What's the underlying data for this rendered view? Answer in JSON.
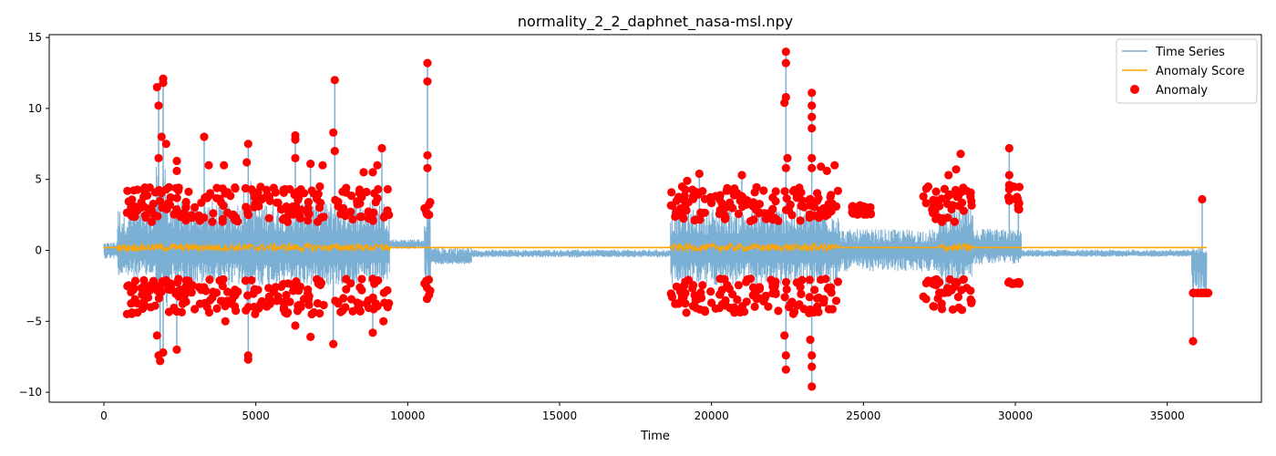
{
  "chart_data": {
    "type": "line",
    "title": "normality_2_2_daphnet_nasa-msl.npy",
    "xlabel": "Time",
    "ylabel": "",
    "xlim": [
      -1800,
      38100
    ],
    "ylim": [
      -10.7,
      15.2
    ],
    "xticks": [
      0,
      5000,
      10000,
      15000,
      20000,
      25000,
      30000,
      35000
    ],
    "yticks": [
      -10,
      -5,
      0,
      5,
      10,
      15
    ],
    "grid": false,
    "legend_position": "top-right",
    "colors": {
      "time_series": "#7bafd4",
      "anomaly_score": "#ffa500",
      "anomaly": "#ff0000"
    },
    "series": [
      {
        "name": "Time Series",
        "segments": [
          {
            "x_start": 0,
            "x_end": 450,
            "center": 0.0,
            "hi": 0.6,
            "lo": -0.6
          },
          {
            "x_start": 450,
            "x_end": 1700,
            "center": 0.1,
            "hi": 3.0,
            "lo": -2.0
          },
          {
            "x_start": 1700,
            "x_end": 2100,
            "center": 0.2,
            "hi": 6.0,
            "lo": -4.0
          },
          {
            "x_start": 2100,
            "x_end": 4600,
            "center": 0.1,
            "hi": 3.5,
            "lo": -2.5
          },
          {
            "x_start": 4600,
            "x_end": 4900,
            "center": 0.1,
            "hi": 5.0,
            "lo": -4.0
          },
          {
            "x_start": 4900,
            "x_end": 9400,
            "center": 0.1,
            "hi": 3.5,
            "lo": -2.5
          },
          {
            "x_start": 9400,
            "x_end": 10550,
            "center": 0.4,
            "hi": 0.8,
            "lo": 0.1
          },
          {
            "x_start": 10550,
            "x_end": 10750,
            "center": 0.3,
            "hi": 3.0,
            "lo": -2.5
          },
          {
            "x_start": 10750,
            "x_end": 12100,
            "center": -0.6,
            "hi": 0.3,
            "lo": -1.0
          },
          {
            "x_start": 12100,
            "x_end": 18650,
            "center": -0.25,
            "hi": 0.05,
            "lo": -0.5
          },
          {
            "x_start": 18650,
            "x_end": 24200,
            "center": 0.1,
            "hi": 3.0,
            "lo": -2.5
          },
          {
            "x_start": 24200,
            "x_end": 27500,
            "center": 0.0,
            "hi": 1.5,
            "lo": -1.5
          },
          {
            "x_start": 27500,
            "x_end": 28600,
            "center": 0.2,
            "hi": 3.0,
            "lo": -2.5
          },
          {
            "x_start": 28600,
            "x_end": 30200,
            "center": 0.1,
            "hi": 1.5,
            "lo": -1.0
          },
          {
            "x_start": 30200,
            "x_end": 35800,
            "center": -0.25,
            "hi": 0.05,
            "lo": -0.45
          },
          {
            "x_start": 35800,
            "x_end": 36300,
            "center": -0.4,
            "hi": 0.2,
            "lo": -3.0
          }
        ],
        "spikes": [
          {
            "x": 1800,
            "y": 11.5
          },
          {
            "x": 1950,
            "y": 12.1
          },
          {
            "x": 1850,
            "y": -7.8
          },
          {
            "x": 1950,
            "y": -7.2
          },
          {
            "x": 2400,
            "y": -7.0
          },
          {
            "x": 3300,
            "y": 8.0
          },
          {
            "x": 4750,
            "y": 7.5
          },
          {
            "x": 4750,
            "y": -7.7
          },
          {
            "x": 6300,
            "y": 8.1
          },
          {
            "x": 6800,
            "y": 6.1
          },
          {
            "x": 7600,
            "y": 12.0
          },
          {
            "x": 7550,
            "y": -6.6
          },
          {
            "x": 8850,
            "y": -5.8
          },
          {
            "x": 9150,
            "y": 7.2
          },
          {
            "x": 10650,
            "y": 13.2
          },
          {
            "x": 10700,
            "y": -3.7
          },
          {
            "x": 19600,
            "y": 5.4
          },
          {
            "x": 21000,
            "y": 5.3
          },
          {
            "x": 22450,
            "y": 14.0
          },
          {
            "x": 22450,
            "y": -8.4
          },
          {
            "x": 23300,
            "y": 11.1
          },
          {
            "x": 23300,
            "y": -9.6
          },
          {
            "x": 29800,
            "y": 7.2
          },
          {
            "x": 30100,
            "y": 3.4
          },
          {
            "x": 35850,
            "y": -6.4
          },
          {
            "x": 36150,
            "y": 3.6
          }
        ]
      },
      {
        "name": "Anomaly Score",
        "baseline": 0.2,
        "noise_regions": [
          [
            450,
            9400
          ],
          [
            18650,
            24200
          ],
          [
            27500,
            28600
          ]
        ]
      },
      {
        "name": "Anomaly",
        "clusters": [
          {
            "x_start": 700,
            "x_end": 9450,
            "upper": [
              2.0,
              4.5
            ],
            "lower": [
              -2.0,
              -4.5
            ]
          },
          {
            "x_start": 10550,
            "x_end": 10780,
            "upper": [
              2.5,
              3.4
            ],
            "lower": [
              -2.0,
              -3.6
            ]
          },
          {
            "x_start": 18650,
            "x_end": 24250,
            "upper": [
              2.0,
              4.5
            ],
            "lower": [
              -2.0,
              -4.5
            ]
          },
          {
            "x_start": 24600,
            "x_end": 25300,
            "upper": [
              2.5,
              3.2
            ],
            "lower": [
              2.5,
              3.0
            ]
          },
          {
            "x_start": 26900,
            "x_end": 28600,
            "upper": [
              2.0,
              4.5
            ],
            "lower": [
              -2.0,
              -4.2
            ]
          },
          {
            "x_start": 29750,
            "x_end": 30150,
            "upper": [
              2.8,
              4.6
            ],
            "lower": [
              -2.2,
              -2.4
            ]
          },
          {
            "x_start": 35850,
            "x_end": 36350,
            "upper": [
              -3.0,
              -3.0
            ],
            "lower": [
              -3.0,
              -3.0
            ]
          }
        ],
        "points": [
          {
            "x": 1750,
            "y": 11.5
          },
          {
            "x": 1800,
            "y": 10.2
          },
          {
            "x": 1950,
            "y": 12.1
          },
          {
            "x": 1950,
            "y": 11.8
          },
          {
            "x": 1900,
            "y": 8.0
          },
          {
            "x": 1800,
            "y": 6.5
          },
          {
            "x": 2050,
            "y": 7.5
          },
          {
            "x": 2400,
            "y": 6.3
          },
          {
            "x": 2400,
            "y": 5.6
          },
          {
            "x": 1850,
            "y": -7.8
          },
          {
            "x": 1800,
            "y": -7.4
          },
          {
            "x": 1950,
            "y": -7.2
          },
          {
            "x": 2400,
            "y": -7.0
          },
          {
            "x": 1750,
            "y": -6.0
          },
          {
            "x": 3300,
            "y": 8.0
          },
          {
            "x": 3450,
            "y": 6.0
          },
          {
            "x": 3950,
            "y": 6.0
          },
          {
            "x": 4000,
            "y": -5.0
          },
          {
            "x": 4750,
            "y": 7.5
          },
          {
            "x": 4700,
            "y": 6.2
          },
          {
            "x": 4750,
            "y": -7.7
          },
          {
            "x": 4750,
            "y": -7.4
          },
          {
            "x": 6300,
            "y": 8.1
          },
          {
            "x": 6300,
            "y": 7.8
          },
          {
            "x": 6300,
            "y": 6.5
          },
          {
            "x": 6800,
            "y": 6.1
          },
          {
            "x": 7200,
            "y": 6.0
          },
          {
            "x": 6300,
            "y": -5.3
          },
          {
            "x": 6800,
            "y": -6.1
          },
          {
            "x": 7550,
            "y": -6.6
          },
          {
            "x": 7600,
            "y": 12.0
          },
          {
            "x": 7550,
            "y": 8.3
          },
          {
            "x": 7600,
            "y": 7.0
          },
          {
            "x": 8550,
            "y": 5.5
          },
          {
            "x": 8850,
            "y": 5.5
          },
          {
            "x": 9150,
            "y": 7.2
          },
          {
            "x": 9000,
            "y": 6.0
          },
          {
            "x": 8850,
            "y": -5.8
          },
          {
            "x": 9200,
            "y": -5.0
          },
          {
            "x": 10650,
            "y": 13.2
          },
          {
            "x": 10650,
            "y": 11.9
          },
          {
            "x": 10650,
            "y": 6.7
          },
          {
            "x": 10650,
            "y": 5.8
          },
          {
            "x": 19200,
            "y": 4.9
          },
          {
            "x": 19600,
            "y": 5.4
          },
          {
            "x": 19500,
            "y": -3.5
          },
          {
            "x": 21000,
            "y": 5.3
          },
          {
            "x": 20500,
            "y": 4.2
          },
          {
            "x": 22450,
            "y": 14.0
          },
          {
            "x": 22450,
            "y": 13.2
          },
          {
            "x": 22450,
            "y": 10.8
          },
          {
            "x": 22400,
            "y": 10.4
          },
          {
            "x": 22500,
            "y": 6.5
          },
          {
            "x": 22450,
            "y": 5.8
          },
          {
            "x": 22450,
            "y": -8.4
          },
          {
            "x": 22450,
            "y": -7.4
          },
          {
            "x": 22400,
            "y": -6.0
          },
          {
            "x": 23300,
            "y": 11.1
          },
          {
            "x": 23300,
            "y": 10.2
          },
          {
            "x": 23300,
            "y": 9.4
          },
          {
            "x": 23300,
            "y": 8.6
          },
          {
            "x": 23300,
            "y": 6.5
          },
          {
            "x": 23300,
            "y": 5.8
          },
          {
            "x": 23300,
            "y": -9.6
          },
          {
            "x": 23300,
            "y": -8.2
          },
          {
            "x": 23300,
            "y": -7.4
          },
          {
            "x": 23250,
            "y": -6.3
          },
          {
            "x": 23600,
            "y": 5.9
          },
          {
            "x": 23800,
            "y": 5.6
          },
          {
            "x": 24050,
            "y": 6.0
          },
          {
            "x": 28200,
            "y": 6.8
          },
          {
            "x": 28050,
            "y": 5.7
          },
          {
            "x": 27800,
            "y": 5.3
          },
          {
            "x": 29800,
            "y": 7.2
          },
          {
            "x": 29800,
            "y": 5.3
          },
          {
            "x": 29800,
            "y": 4.6
          },
          {
            "x": 29800,
            "y": 4.3
          },
          {
            "x": 30100,
            "y": 3.4
          },
          {
            "x": 30100,
            "y": 2.9
          },
          {
            "x": 30100,
            "y": -2.3
          },
          {
            "x": 29800,
            "y": -2.2
          },
          {
            "x": 35850,
            "y": -6.4
          },
          {
            "x": 35850,
            "y": -3.0
          },
          {
            "x": 36000,
            "y": -3.0
          },
          {
            "x": 36150,
            "y": 3.6
          },
          {
            "x": 36200,
            "y": -3.0
          },
          {
            "x": 36350,
            "y": -3.0
          }
        ]
      }
    ]
  }
}
